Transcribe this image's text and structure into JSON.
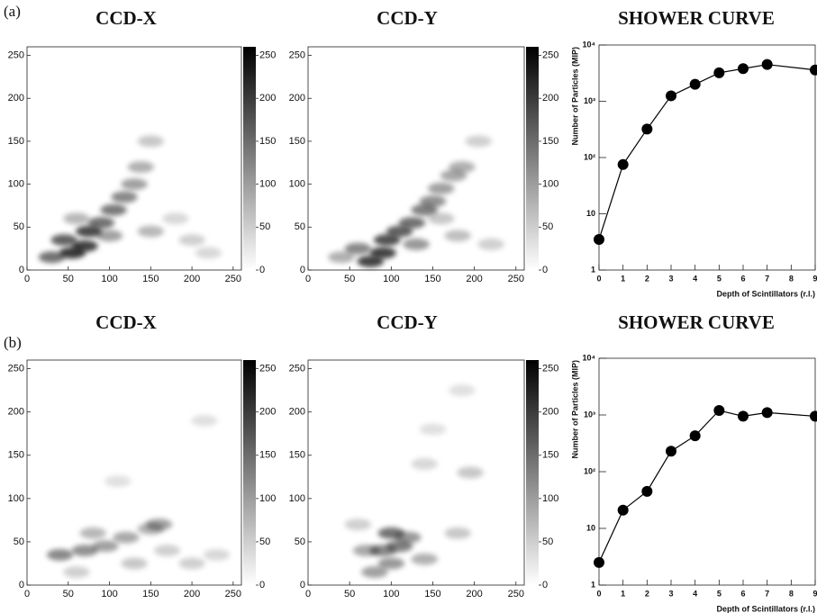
{
  "panel_labels": [
    "(a)",
    "(b)"
  ],
  "chart_data": [
    {
      "type": "heatmap",
      "title": "CCD-X",
      "x": [
        55,
        70,
        45,
        75,
        90,
        105,
        118,
        130,
        138,
        150,
        30,
        100,
        150,
        200,
        60,
        220,
        180
      ],
      "y": [
        20,
        28,
        35,
        45,
        55,
        70,
        85,
        100,
        120,
        150,
        15,
        40,
        45,
        35,
        60,
        20,
        60
      ],
      "values": [
        250,
        240,
        200,
        230,
        180,
        170,
        150,
        120,
        100,
        70,
        180,
        120,
        90,
        60,
        90,
        50,
        50
      ],
      "xlim": [
        0,
        260
      ],
      "ylim": [
        0,
        260
      ],
      "xticks": [
        0,
        50,
        100,
        150,
        200,
        250
      ],
      "yticks": [
        0,
        50,
        100,
        150,
        200,
        250
      ],
      "colorbar_lim": [
        0,
        260
      ],
      "colorbar_ticks": [
        0,
        50,
        100,
        150,
        200,
        250
      ]
    },
    {
      "type": "heatmap",
      "title": "CCD-Y",
      "x": [
        75,
        90,
        95,
        110,
        125,
        140,
        150,
        160,
        175,
        185,
        205,
        60,
        130,
        180,
        220,
        40,
        160
      ],
      "y": [
        10,
        20,
        35,
        45,
        55,
        70,
        80,
        95,
        110,
        120,
        150,
        25,
        30,
        40,
        30,
        15,
        60
      ],
      "values": [
        240,
        240,
        220,
        200,
        180,
        160,
        140,
        120,
        110,
        100,
        60,
        150,
        130,
        80,
        60,
        100,
        70
      ],
      "xlim": [
        0,
        260
      ],
      "ylim": [
        0,
        260
      ],
      "xticks": [
        0,
        50,
        100,
        150,
        200,
        250
      ],
      "yticks": [
        0,
        50,
        100,
        150,
        200,
        250
      ],
      "colorbar_lim": [
        0,
        260
      ],
      "colorbar_ticks": [
        0,
        50,
        100,
        150,
        200,
        250
      ]
    },
    {
      "type": "line",
      "title": "SHOWER CURVE",
      "x_label": "Depth of Scintillators (r.l.)",
      "y_label": "Number of Particles (MIP)",
      "x": [
        0,
        1,
        2,
        3,
        4,
        5,
        6,
        7,
        9
      ],
      "values": [
        3.5,
        75,
        320,
        1250,
        2000,
        3200,
        3800,
        4500,
        3600
      ],
      "xlim": [
        0,
        9
      ],
      "ylim": [
        1,
        10000
      ],
      "log_y": true,
      "xticks": [
        0,
        1,
        2,
        3,
        4,
        5,
        6,
        7,
        8,
        9
      ],
      "yticks": [
        1,
        10,
        {
          "value": 100,
          "label": "10²"
        },
        {
          "value": 1000,
          "label": "10³"
        },
        {
          "value": 10000,
          "label": "10⁴"
        }
      ],
      "color": "#000000"
    },
    {
      "type": "heatmap",
      "title": "CCD-X",
      "x": [
        40,
        70,
        95,
        120,
        150,
        160,
        80,
        130,
        200,
        230,
        60,
        170,
        215,
        110
      ],
      "y": [
        35,
        40,
        45,
        55,
        65,
        70,
        60,
        25,
        25,
        35,
        15,
        40,
        190,
        120
      ],
      "values": [
        150,
        140,
        120,
        110,
        100,
        120,
        90,
        70,
        60,
        50,
        60,
        60,
        40,
        40
      ],
      "xlim": [
        0,
        260
      ],
      "ylim": [
        0,
        260
      ],
      "xticks": [
        0,
        50,
        100,
        150,
        200,
        250
      ],
      "yticks": [
        0,
        50,
        100,
        150,
        200,
        250
      ],
      "colorbar_lim": [
        0,
        260
      ],
      "colorbar_ticks": [
        0,
        50,
        100,
        150,
        200,
        250
      ]
    },
    {
      "type": "heatmap",
      "title": "CCD-Y",
      "x": [
        80,
        100,
        90,
        110,
        100,
        120,
        140,
        70,
        180,
        195,
        140,
        60,
        150,
        185
      ],
      "y": [
        15,
        25,
        40,
        45,
        60,
        55,
        30,
        40,
        60,
        130,
        140,
        70,
        180,
        225
      ],
      "values": [
        120,
        130,
        150,
        160,
        180,
        130,
        100,
        110,
        70,
        70,
        50,
        60,
        40,
        40
      ],
      "xlim": [
        0,
        260
      ],
      "ylim": [
        0,
        260
      ],
      "xticks": [
        0,
        50,
        100,
        150,
        200,
        250
      ],
      "yticks": [
        0,
        50,
        100,
        150,
        200,
        250
      ],
      "colorbar_lim": [
        0,
        260
      ],
      "colorbar_ticks": [
        0,
        50,
        100,
        150,
        200,
        250
      ]
    },
    {
      "type": "line",
      "title": "SHOWER CURVE",
      "x_label": "Depth of Scintillators (r.l.)",
      "y_label": "Number of Particles (MIP)",
      "x": [
        0,
        1,
        2,
        3,
        4,
        5,
        6,
        7,
        9
      ],
      "values": [
        2.5,
        21,
        45,
        230,
        430,
        1200,
        950,
        1100,
        950
      ],
      "xlim": [
        0,
        9
      ],
      "ylim": [
        1,
        10000
      ],
      "log_y": true,
      "xticks": [
        0,
        1,
        2,
        3,
        4,
        5,
        6,
        7,
        8,
        9
      ],
      "yticks": [
        1,
        10,
        {
          "value": 100,
          "label": "10²"
        },
        {
          "value": 1000,
          "label": "10³"
        },
        {
          "value": 10000,
          "label": "10⁴"
        }
      ],
      "color": "#000000"
    }
  ]
}
